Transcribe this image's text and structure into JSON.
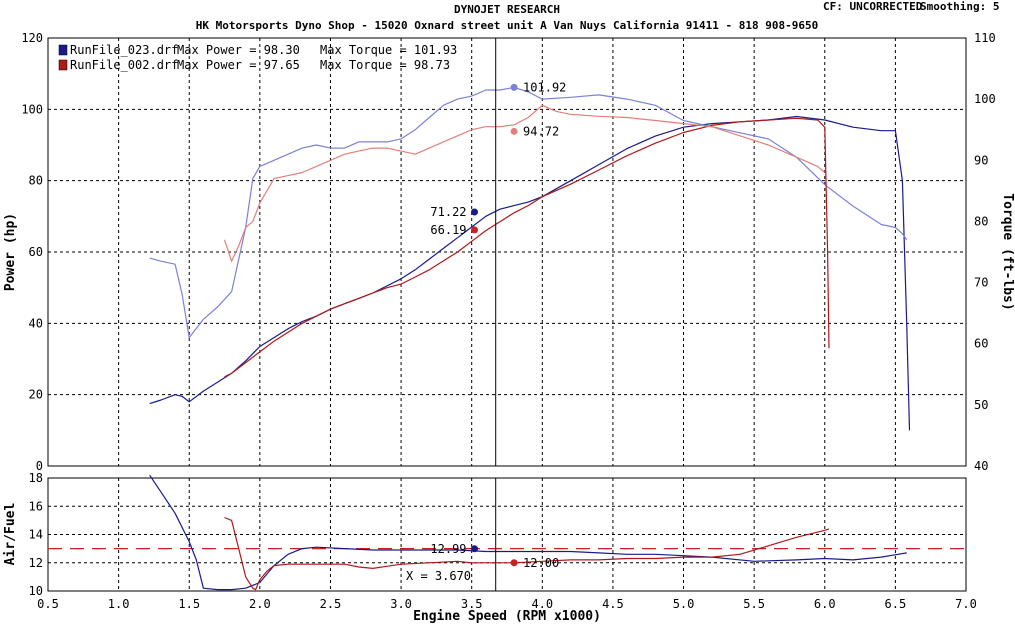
{
  "header": {
    "company": "DYNOJET RESEARCH",
    "shop": "HK Motorsports Dyno Shop - 15020 Oxnard street unit A Van Nuys California 91411 - 818 908-9650",
    "cf": "CF: UNCORRECTED",
    "smoothing": "Smoothing: 5"
  },
  "colors": {
    "run1": "#1a1a8c",
    "run1_light": "#7b82d6",
    "run2": "#b01818",
    "run2_light": "#e0807a",
    "afr_target": "#cc2020",
    "grid": "#000000",
    "cursor": "#000000"
  },
  "legend": [
    {
      "file": "RunFile_023.drf",
      "power_label": "Max Power = 98.30",
      "torque_label": "Max Torque = 101.93"
    },
    {
      "file": "RunFile_002.drf",
      "power_label": "Max Power = 97.65",
      "torque_label": "Max Torque = 98.73"
    }
  ],
  "cursor": {
    "rpm": 3.67,
    "label": "X = 3.670"
  },
  "chart_data": [
    {
      "type": "line",
      "title": "",
      "xlabel": "Engine Speed (RPM x1000)",
      "ylabel": "Power (hp)",
      "y2label": "Torque (ft-lbs)",
      "xlim": [
        0.5,
        7.0
      ],
      "ylim": [
        0,
        120
      ],
      "y2lim": [
        40,
        110
      ],
      "xticks": [
        "0.5",
        "1.0",
        "1.5",
        "2.0",
        "2.5",
        "3.0",
        "3.5",
        "4.0",
        "4.5",
        "5.0",
        "5.5",
        "6.0",
        "6.5",
        "7.0"
      ],
      "yticks": [
        "0",
        "20",
        "40",
        "60",
        "80",
        "100",
        "120"
      ],
      "y2ticks": [
        "40",
        "50",
        "60",
        "70",
        "80",
        "90",
        "100",
        "110"
      ],
      "grid": true,
      "legend_position": "top-left",
      "series": [
        {
          "name": "RunFile_023.drf",
          "quantity": "power",
          "axis": "left",
          "color": "#1a1a8c",
          "x": [
            1.22,
            1.3,
            1.4,
            1.45,
            1.5,
            1.6,
            1.7,
            1.8,
            1.9,
            2.0,
            2.1,
            2.2,
            2.3,
            2.4,
            2.5,
            2.6,
            2.7,
            2.8,
            2.9,
            3.0,
            3.1,
            3.2,
            3.3,
            3.4,
            3.5,
            3.6,
            3.7,
            3.8,
            3.9,
            4.0,
            4.2,
            4.4,
            4.6,
            4.8,
            5.0,
            5.2,
            5.4,
            5.6,
            5.8,
            6.0,
            6.2,
            6.4,
            6.5,
            6.55,
            6.58,
            6.6
          ],
          "values": [
            17.5,
            18.5,
            20,
            19.5,
            18,
            21,
            23.5,
            26,
            29.5,
            33.5,
            36,
            38.5,
            40.5,
            42,
            44,
            45.5,
            47,
            48.5,
            50.5,
            52.5,
            55,
            58,
            61,
            64,
            67,
            70,
            72,
            73,
            74,
            75.5,
            80,
            84.5,
            89,
            92.5,
            95,
            96,
            96.5,
            97,
            98,
            97,
            95,
            94,
            94,
            80,
            40,
            10
          ]
        },
        {
          "name": "RunFile_023.drf",
          "quantity": "torque",
          "axis": "right",
          "color": "#7b82d6",
          "x": [
            1.22,
            1.3,
            1.4,
            1.45,
            1.5,
            1.55,
            1.6,
            1.7,
            1.8,
            1.9,
            1.95,
            2.0,
            2.1,
            2.2,
            2.3,
            2.4,
            2.5,
            2.6,
            2.7,
            2.8,
            2.9,
            3.0,
            3.1,
            3.2,
            3.3,
            3.4,
            3.5,
            3.6,
            3.7,
            3.8,
            3.9,
            4.0,
            4.2,
            4.4,
            4.6,
            4.8,
            5.0,
            5.2,
            5.4,
            5.6,
            5.8,
            6.0,
            6.2,
            6.4,
            6.5,
            6.55,
            6.58
          ],
          "values": [
            74,
            73.5,
            73,
            68,
            61,
            62.5,
            64,
            66,
            68.5,
            79,
            87,
            89,
            90,
            91,
            92,
            92.5,
            92,
            92,
            93,
            93,
            93,
            93.5,
            95,
            97,
            99,
            100,
            100.5,
            101.5,
            101.5,
            101.9,
            101.2,
            100,
            100.3,
            100.7,
            100,
            99,
            96.5,
            95.5,
            94.5,
            93.5,
            90.5,
            86,
            82.5,
            79.5,
            79,
            78,
            77
          ]
        },
        {
          "name": "RunFile_002.drf",
          "quantity": "power",
          "axis": "left",
          "color": "#b01818",
          "x": [
            1.75,
            1.8,
            1.9,
            2.0,
            2.1,
            2.2,
            2.3,
            2.4,
            2.5,
            2.6,
            2.7,
            2.8,
            2.9,
            3.0,
            3.1,
            3.2,
            3.3,
            3.4,
            3.5,
            3.6,
            3.7,
            3.8,
            3.9,
            4.0,
            4.2,
            4.4,
            4.6,
            4.8,
            5.0,
            5.2,
            5.4,
            5.6,
            5.8,
            5.95,
            6.0,
            6.02,
            6.03
          ],
          "values": [
            25,
            26,
            29,
            32,
            35,
            37.5,
            40,
            42,
            44,
            45.5,
            47,
            48.5,
            50,
            51,
            53,
            55,
            57.5,
            60,
            63,
            66,
            68.5,
            71,
            73,
            75.5,
            79,
            83,
            87,
            90.5,
            93.5,
            95.5,
            96.5,
            97,
            97.5,
            97,
            95,
            60,
            33
          ]
        },
        {
          "name": "RunFile_002.drf",
          "quantity": "torque",
          "axis": "right",
          "color": "#e0807a",
          "x": [
            1.75,
            1.8,
            1.85,
            1.9,
            1.95,
            2.0,
            2.1,
            2.2,
            2.3,
            2.4,
            2.5,
            2.6,
            2.7,
            2.8,
            2.9,
            3.0,
            3.1,
            3.2,
            3.3,
            3.4,
            3.5,
            3.6,
            3.7,
            3.8,
            3.9,
            4.0,
            4.1,
            4.2,
            4.4,
            4.6,
            4.8,
            5.0,
            5.2,
            5.4,
            5.6,
            5.8,
            5.95,
            6.0
          ],
          "values": [
            77,
            73.5,
            76,
            79,
            80,
            83,
            87,
            87.5,
            88,
            89,
            90,
            91,
            91.5,
            92,
            92,
            91.5,
            91,
            92,
            93,
            94,
            95,
            95.5,
            95.5,
            95.8,
            97,
            99,
            98,
            97.5,
            97.2,
            97,
            96.5,
            96,
            95.5,
            94,
            92.5,
            90.5,
            89,
            88
          ]
        }
      ]
    },
    {
      "type": "line",
      "title": "",
      "xlabel": "Engine Speed (RPM x1000)",
      "ylabel": "Air/Fuel",
      "xlim": [
        0.5,
        7.0
      ],
      "ylim": [
        10,
        18
      ],
      "yticks": [
        "10",
        "12",
        "14",
        "16",
        "18"
      ],
      "grid": true,
      "target": 13.0,
      "series": [
        {
          "name": "RunFile_023.drf",
          "color": "#1a1a8c",
          "x": [
            1.22,
            1.3,
            1.4,
            1.5,
            1.55,
            1.6,
            1.7,
            1.8,
            1.9,
            2.0,
            2.1,
            2.2,
            2.3,
            2.4,
            2.6,
            2.8,
            3.0,
            3.2,
            3.4,
            3.6,
            3.8,
            4.0,
            4.2,
            4.4,
            4.6,
            4.8,
            5.0,
            5.2,
            5.5,
            5.8,
            6.0,
            6.2,
            6.4,
            6.58
          ],
          "values": [
            18.2,
            17,
            15.5,
            13.5,
            12.2,
            10.2,
            10.1,
            10.1,
            10.2,
            10.6,
            11.8,
            12.6,
            13,
            13.1,
            13,
            12.9,
            12.9,
            12.9,
            12.9,
            12.8,
            12.8,
            12.8,
            12.8,
            12.7,
            12.6,
            12.6,
            12.5,
            12.4,
            12.1,
            12.2,
            12.3,
            12.2,
            12.4,
            12.7
          ]
        },
        {
          "name": "RunFile_002.drf",
          "color": "#b01818",
          "x": [
            1.75,
            1.8,
            1.85,
            1.9,
            1.95,
            1.97,
            2.0,
            2.05,
            2.1,
            2.2,
            2.4,
            2.6,
            2.7,
            2.8,
            3.0,
            3.2,
            3.4,
            3.5,
            3.6,
            3.8,
            4.0,
            4.2,
            4.4,
            4.6,
            4.8,
            5.0,
            5.2,
            5.4,
            5.6,
            5.8,
            6.0,
            6.03
          ],
          "values": [
            15.2,
            15,
            13,
            11,
            10.2,
            10.1,
            10.8,
            11.4,
            11.8,
            11.9,
            11.9,
            11.9,
            11.7,
            11.6,
            11.9,
            12,
            12.1,
            12,
            12,
            12,
            12.1,
            12.2,
            12.2,
            12.3,
            12.3,
            12.4,
            12.4,
            12.6,
            13.2,
            13.8,
            14.3,
            14.4
          ]
        }
      ]
    }
  ],
  "markers": [
    {
      "label": "101.92",
      "x": 3.8,
      "value": 101.92,
      "axis": "right",
      "color": "#7b82d6"
    },
    {
      "label": "94.72",
      "x": 3.8,
      "value": 94.72,
      "axis": "right",
      "color": "#e0807a"
    },
    {
      "label": "71.22",
      "x": 3.52,
      "value": 71.22,
      "axis": "left",
      "color": "#1a1a8c"
    },
    {
      "label": "66.19",
      "x": 3.52,
      "value": 66.19,
      "axis": "left",
      "color": "#cc2020"
    },
    {
      "label": "12.99",
      "x": 3.52,
      "value": 12.99,
      "axis": "afr",
      "color": "#1a1a8c"
    },
    {
      "label": "12.00",
      "x": 3.8,
      "value": 12.0,
      "axis": "afr",
      "color": "#cc2020"
    }
  ]
}
